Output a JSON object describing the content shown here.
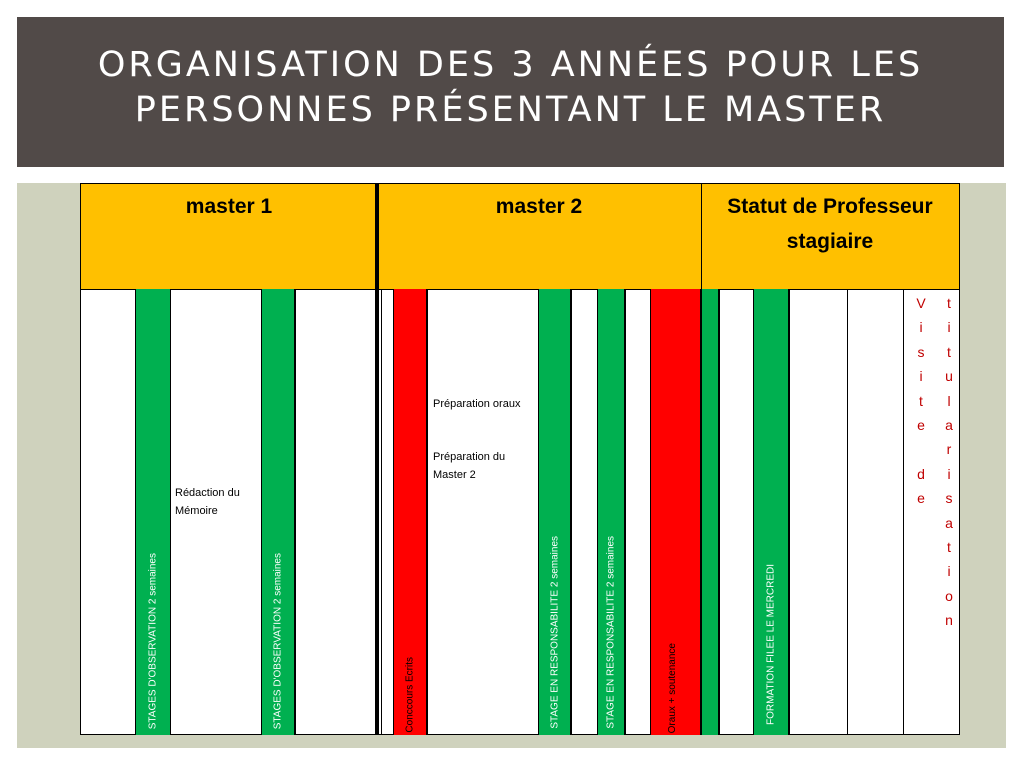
{
  "title": "Organisation des 3 années pour les personnes présentant le master",
  "headers": [
    "master 1",
    "master 2",
    "Statut de Professeur stagiaire"
  ],
  "bars": {
    "stage_observation_1": "STAGES  D'OBSERVATION 2 semaines",
    "stage_observation_2": "STAGES  D'OBSERVATION 2 semaines",
    "concours_ecrits": "Conccours Ecrits",
    "stage_responsabilite_1": "STAGE EN RESPONSABILITE 2 semaines",
    "stage_responsabilite_2": "STAGE EN RESPONSABILITE 2 semaines",
    "oraux_soutenance": "Oraux + soutenance",
    "formation_filee": "FORMATION FILEE LE MERCREDI"
  },
  "notes": {
    "redaction_memoire": "Rédaction du Mémoire",
    "preparation_oraux": "Préparation oraux",
    "preparation_master2": "Préparation du Master 2"
  },
  "visite": {
    "line1": [
      "V",
      "i",
      "s",
      "i",
      "t",
      "e",
      "",
      "d",
      "e"
    ],
    "line2": [
      "t",
      "i",
      "t",
      "u",
      "l",
      "a",
      "r",
      "i",
      "s",
      "a",
      "t",
      "i",
      "o",
      "n"
    ]
  },
  "colors": {
    "title_bar": "#514a48",
    "header": "#ffc000",
    "stage": "#00b050",
    "exam": "#ff0000",
    "visite_text": "#c00000",
    "panel": "#cfd2bd"
  }
}
